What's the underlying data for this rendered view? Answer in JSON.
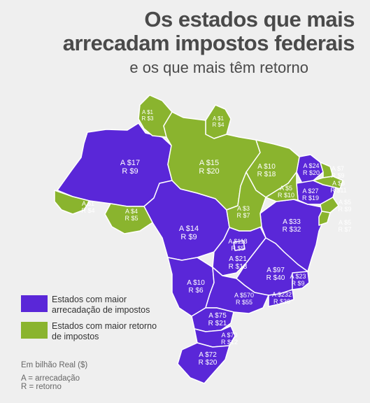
{
  "header": {
    "title_line1": "Os estados que mais",
    "title_line2": "arrecadam impostos federais",
    "subtitle": "e os que mais têm retorno"
  },
  "colors": {
    "arrecadacao": "#5a27d8",
    "retorno": "#8ab42e"
  },
  "states": [
    {
      "id": "rr",
      "group": "retorno",
      "a": "A $1",
      "r": "R $3"
    },
    {
      "id": "ap",
      "group": "retorno",
      "a": "A $1",
      "r": "R $4"
    },
    {
      "id": "am",
      "group": "arrecadacao",
      "a": "A $17",
      "r": "R $9"
    },
    {
      "id": "pa",
      "group": "retorno",
      "a": "A $15",
      "r": "R $20"
    },
    {
      "id": "ma",
      "group": "retorno",
      "a": "A $10",
      "r": "R $18"
    },
    {
      "id": "ce",
      "group": "arrecadacao",
      "a": "A $24",
      "r": "R $20"
    },
    {
      "id": "rn",
      "group": "retorno",
      "a": "A $7",
      "r": "R $9"
    },
    {
      "id": "pb",
      "group": "retorno",
      "a": "A $8",
      "r": "R $11"
    },
    {
      "id": "pe",
      "group": "arrecadacao",
      "a": "A $27",
      "r": "R $19"
    },
    {
      "id": "pi",
      "group": "retorno",
      "a": "A $5",
      "r": "R $10"
    },
    {
      "id": "ac",
      "group": "retorno",
      "a": "A $1",
      "r": "R $4"
    },
    {
      "id": "ro",
      "group": "retorno",
      "a": "A $4",
      "r": "R $5"
    },
    {
      "id": "to",
      "group": "retorno",
      "a": "A $3",
      "r": "R $7"
    },
    {
      "id": "al",
      "group": "retorno",
      "a": "A $5",
      "r": "R $9"
    },
    {
      "id": "se",
      "group": "retorno",
      "a": "A $5",
      "r": "R $7"
    },
    {
      "id": "mt",
      "group": "arrecadacao",
      "a": "A $14",
      "r": "R $9"
    },
    {
      "id": "ba",
      "group": "arrecadacao",
      "a": "A $33",
      "r": "R $32"
    },
    {
      "id": "df",
      "group": "arrecadacao",
      "a": "A $118",
      "r": "R $5"
    },
    {
      "id": "go",
      "group": "arrecadacao",
      "a": "A $21",
      "r": "R $13"
    },
    {
      "id": "mg",
      "group": "arrecadacao",
      "a": "A $97",
      "r": "R $40"
    },
    {
      "id": "es",
      "group": "arrecadacao",
      "a": "A $23",
      "r": "R $9"
    },
    {
      "id": "ms",
      "group": "arrecadacao",
      "a": "A $10",
      "r": "R $6"
    },
    {
      "id": "sp",
      "group": "arrecadacao",
      "a": "A $570",
      "r": "R $55"
    },
    {
      "id": "rj",
      "group": "arrecadacao",
      "a": "A $232",
      "r": "R $36"
    },
    {
      "id": "pr",
      "group": "arrecadacao",
      "a": "A $75",
      "r": "R $21"
    },
    {
      "id": "sc",
      "group": "arrecadacao",
      "a": "A $70",
      "r": "R $12"
    },
    {
      "id": "rs",
      "group": "arrecadacao",
      "a": "A $72",
      "r": "R $20"
    }
  ],
  "legend": {
    "item1": "Estados com maior arrecadação de impostos",
    "item2": "Estados com maior retorno de impostos"
  },
  "note": {
    "unit": "Em bilhão Real ($)",
    "a_def": "A = arrecadação",
    "r_def": "R = retorno"
  }
}
